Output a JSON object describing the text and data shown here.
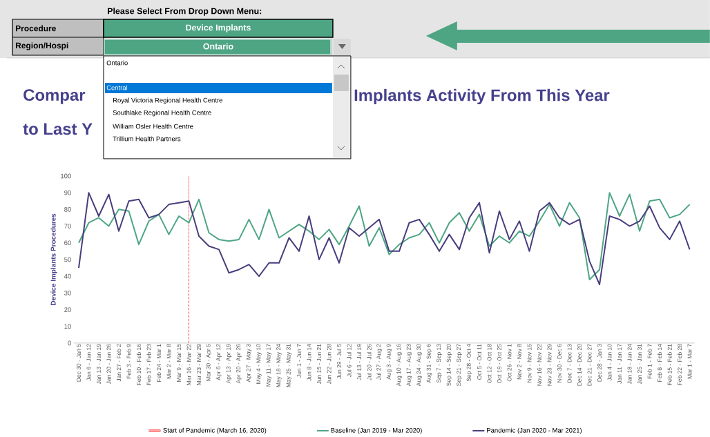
{
  "chart_data": {
    "type": "line",
    "categories": [
      "Dec 30 - Jan 5",
      "Jan 6 - Jan 12",
      "Jan 13 - Jan 19",
      "Jan 20 - Jan 26",
      "Jan 27 - Feb 2",
      "Feb 3 - Feb 9",
      "Feb 10 - Feb 16",
      "Feb 17 - Feb 23",
      "Feb 24 - Mar 1",
      "Mar 2 - Mar 8",
      "Mar 9 - Mar 15",
      "Mar 16 - Mar 22",
      "Mar 23 - Mar 29",
      "Mar 30 - Apr 5",
      "Apr 6 - Apr 12",
      "Apr 13 - Apr 19",
      "Apr 20 - Apr 26",
      "Apr 27 - May 3",
      "May 4 - May 10",
      "May 11 - May 17",
      "May 18 - May 24",
      "May 25 - May 31",
      "Jun 1 - Jun 7",
      "Jun 8 - Jun 14",
      "Jun 15 - Jun 21",
      "Jun 22 - Jun 28",
      "Jun 29 - Jul 5",
      "Jul 6 - Jul 12",
      "Jul 13 - Jul 19",
      "Jul 20 - Jul 26",
      "Jul 27 - Aug 2",
      "Aug 3 - Aug 9",
      "Aug 10 - Aug 16",
      "Aug 17 - Aug 23",
      "Aug 24 - Aug 30",
      "Aug 31 - Sep 6",
      "Sep 7 - Sep 13",
      "Sep 14 - Sep 20",
      "Sep 21 - Sep 27",
      "Sep 28 - Oct 4",
      "Oct 5 - Oct 11",
      "Oct 12 - Oct 18",
      "Oct 19 - Oct 25",
      "Oct 26 - Nov 1",
      "Nov 2 - Nov 8",
      "Nov 9 - Nov 15",
      "Nov 16 - Nov 22",
      "Nov 23 - Nov 29",
      "Nov 30 - Dec 6",
      "Dec 7 - Dec 13",
      "Dec 14 - Dec 20",
      "Dec 21 - Dec 27",
      "Dec 28 - Jan 3",
      "Jan 4 - Jan 10",
      "Jan 11 - Jan 17",
      "Jan 18 - Jan 24",
      "Jan 25 - Jan 31",
      "Feb 1 - Feb 7",
      "Feb 8 - Feb 14",
      "Feb 15 - Feb 21",
      "Feb 22 - Feb 28",
      "Mar 1 - Mar 7"
    ],
    "series": [
      {
        "name": "Baseline (Jan 2019 - Mar 2020)",
        "color": "#4ea584",
        "values": [
          60,
          72,
          75,
          70,
          80,
          79,
          59,
          73,
          77,
          65,
          76,
          72,
          86,
          66,
          62,
          61,
          62,
          74,
          62,
          80,
          63,
          67,
          71,
          67,
          62,
          68,
          59,
          70,
          82,
          58,
          69,
          53,
          59,
          63,
          65,
          72,
          60,
          72,
          78,
          67,
          77,
          58,
          64,
          60,
          67,
          64,
          73,
          83,
          70,
          84,
          75,
          38,
          44,
          90,
          76,
          89,
          67,
          85,
          86,
          75,
          77,
          83
        ]
      },
      {
        "name": "Pandemic (Jan 2020 - Mar 2021)",
        "color": "#483d7d",
        "values": [
          45,
          90,
          76,
          89,
          67,
          85,
          86,
          75,
          77,
          83,
          84,
          85,
          64,
          58,
          56,
          42,
          44,
          47,
          40,
          48,
          48,
          63,
          55,
          76,
          50,
          63,
          48,
          69,
          64,
          69,
          74,
          55,
          55,
          72,
          74,
          65,
          55,
          65,
          56,
          75,
          84,
          54,
          79,
          62,
          73,
          55,
          79,
          84,
          75,
          71,
          74,
          49,
          35,
          76,
          74,
          70,
          73,
          82,
          69,
          62,
          73,
          56
        ]
      }
    ],
    "ylim": [
      0,
      100
    ],
    "yticks": [
      0,
      10,
      20,
      30,
      40,
      50,
      60,
      70,
      80,
      90,
      100
    ],
    "ylabel": "Device Implants Procedures",
    "ref_lines": [
      {
        "axis": "x",
        "value": "Mar 16 - Mar 22",
        "label": "Start of Pandemic (March 16, 2020)",
        "color": "#ff0000",
        "line_style": "dotted"
      }
    ],
    "legend": "bottom",
    "annotations": [
      "Please Select From Drop Down Menu:",
      "Procedure",
      "Device Implants",
      "Region/Hospi",
      "Ontario",
      "Ontario",
      "Central",
      "Royal Victoria Regional Health Centre",
      "Southlake Regional Health Centre",
      "William Osler Health Centre",
      "Trillium Health Partners",
      "Compar",
      "Implants Activity From This Year",
      "to Last Y"
    ]
  }
}
